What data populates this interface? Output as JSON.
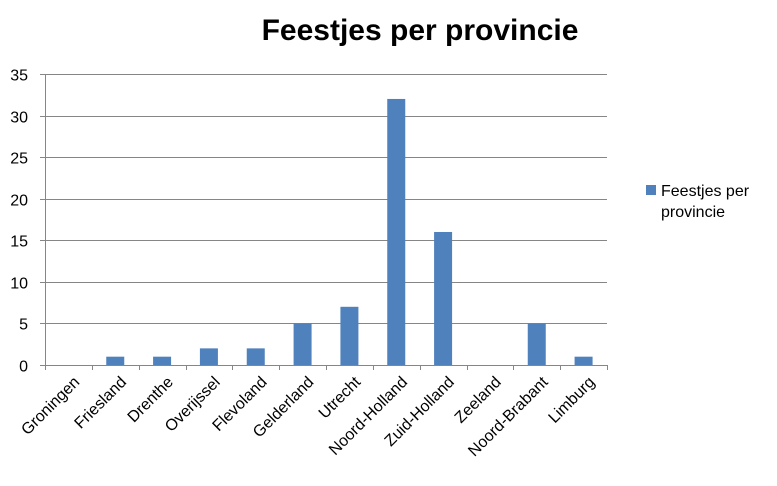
{
  "chart_data": {
    "type": "bar",
    "title": "Feestjes per provincie",
    "xlabel": "",
    "ylabel": "",
    "categories": [
      "Groningen",
      "Friesland",
      "Drenthe",
      "Overijssel",
      "Flevoland",
      "Gelderland",
      "Utrecht",
      "Noord-Holland",
      "Zuid-Holland",
      "Zeeland",
      "Noord-Brabant",
      "Limburg"
    ],
    "series": [
      {
        "name": "Feestjes per provincie",
        "values": [
          0,
          1,
          1,
          2,
          2,
          5,
          7,
          32,
          16,
          0,
          5,
          1
        ],
        "color": "#4F81BD"
      }
    ],
    "ylim": [
      0,
      35
    ],
    "yticks": [
      0,
      5,
      10,
      15,
      20,
      25,
      30,
      35
    ],
    "grid": true,
    "legend": {
      "position": "right",
      "lines": [
        "Feestjes per",
        "provincie"
      ]
    },
    "colors": {
      "bar": "#4F81BD",
      "grid": "#868686",
      "axis": "#868686"
    }
  }
}
